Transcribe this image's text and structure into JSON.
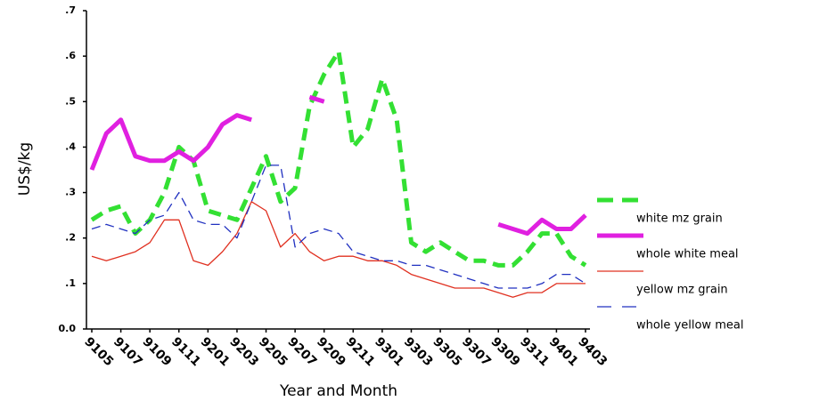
{
  "chart_data": {
    "type": "line",
    "x_label": "Year and Month",
    "y_label": "US$/kg",
    "categories": [
      "9105",
      null,
      "9107",
      null,
      "9109",
      null,
      "9111",
      null,
      "9201",
      null,
      "9203",
      null,
      "9205",
      null,
      "9207",
      null,
      "9209",
      null,
      "9211",
      null,
      "9301",
      null,
      "9303",
      null,
      "9305",
      null,
      "9307",
      null,
      "9309",
      null,
      "9311",
      null,
      "9401",
      null,
      "9403"
    ],
    "ylim": [
      0,
      0.7
    ],
    "yticks": [
      {
        "value": 0,
        "label": "0.0"
      },
      {
        "value": 0.1,
        "label": ".1"
      },
      {
        "value": 0.2,
        "label": ".2"
      },
      {
        "value": 0.3,
        "label": ".3"
      },
      {
        "value": 0.4,
        "label": ".4"
      },
      {
        "value": 0.5,
        "label": ".5"
      },
      {
        "value": 0.6,
        "label": ".6"
      },
      {
        "value": 0.7,
        "label": ".7"
      }
    ],
    "series": [
      {
        "name": "white mz grain",
        "color": "#33e033",
        "style": "dashed",
        "width": 5,
        "values": [
          0.24,
          0.26,
          0.27,
          0.21,
          0.24,
          0.3,
          0.4,
          0.37,
          0.26,
          0.25,
          0.24,
          0.31,
          0.38,
          0.28,
          0.31,
          0.49,
          0.56,
          0.61,
          0.4,
          0.44,
          0.55,
          0.46,
          0.19,
          0.17,
          0.19,
          0.17,
          0.15,
          0.15,
          0.14,
          0.14,
          0.17,
          0.21,
          0.21,
          0.16,
          0.14
        ]
      },
      {
        "name": "whole white meal",
        "color": "#e020e0",
        "style": "solid",
        "width": 5,
        "values": [
          0.35,
          0.43,
          0.46,
          0.38,
          0.37,
          0.37,
          0.39,
          0.37,
          0.4,
          0.45,
          0.47,
          0.46,
          null,
          null,
          null,
          0.51,
          0.5,
          null,
          null,
          null,
          null,
          null,
          null,
          null,
          null,
          null,
          null,
          null,
          0.23,
          0.22,
          0.21,
          0.24,
          0.22,
          0.22,
          0.25
        ]
      },
      {
        "name": "yellow mz grain",
        "color": "#e03020",
        "style": "solid",
        "width": 1.3,
        "values": [
          0.16,
          0.15,
          0.16,
          0.17,
          0.19,
          0.24,
          0.24,
          0.15,
          0.14,
          0.17,
          0.21,
          0.28,
          0.26,
          0.18,
          0.21,
          0.17,
          0.15,
          0.16,
          0.16,
          0.15,
          0.15,
          0.14,
          0.12,
          0.11,
          0.1,
          0.09,
          0.09,
          0.09,
          0.08,
          0.07,
          0.08,
          0.08,
          0.1,
          0.1,
          0.1
        ]
      },
      {
        "name": "whole yellow meal",
        "color": "#2030c0",
        "style": "dashed",
        "width": 1.3,
        "values": [
          0.22,
          0.23,
          0.22,
          0.21,
          0.24,
          0.25,
          0.3,
          0.24,
          0.23,
          0.23,
          0.2,
          0.28,
          0.36,
          0.36,
          0.18,
          0.21,
          0.22,
          0.21,
          0.17,
          0.16,
          0.15,
          0.15,
          0.14,
          0.14,
          0.13,
          0.12,
          0.11,
          0.1,
          0.09,
          0.09,
          0.09,
          0.1,
          0.12,
          0.12,
          0.1
        ]
      }
    ]
  }
}
